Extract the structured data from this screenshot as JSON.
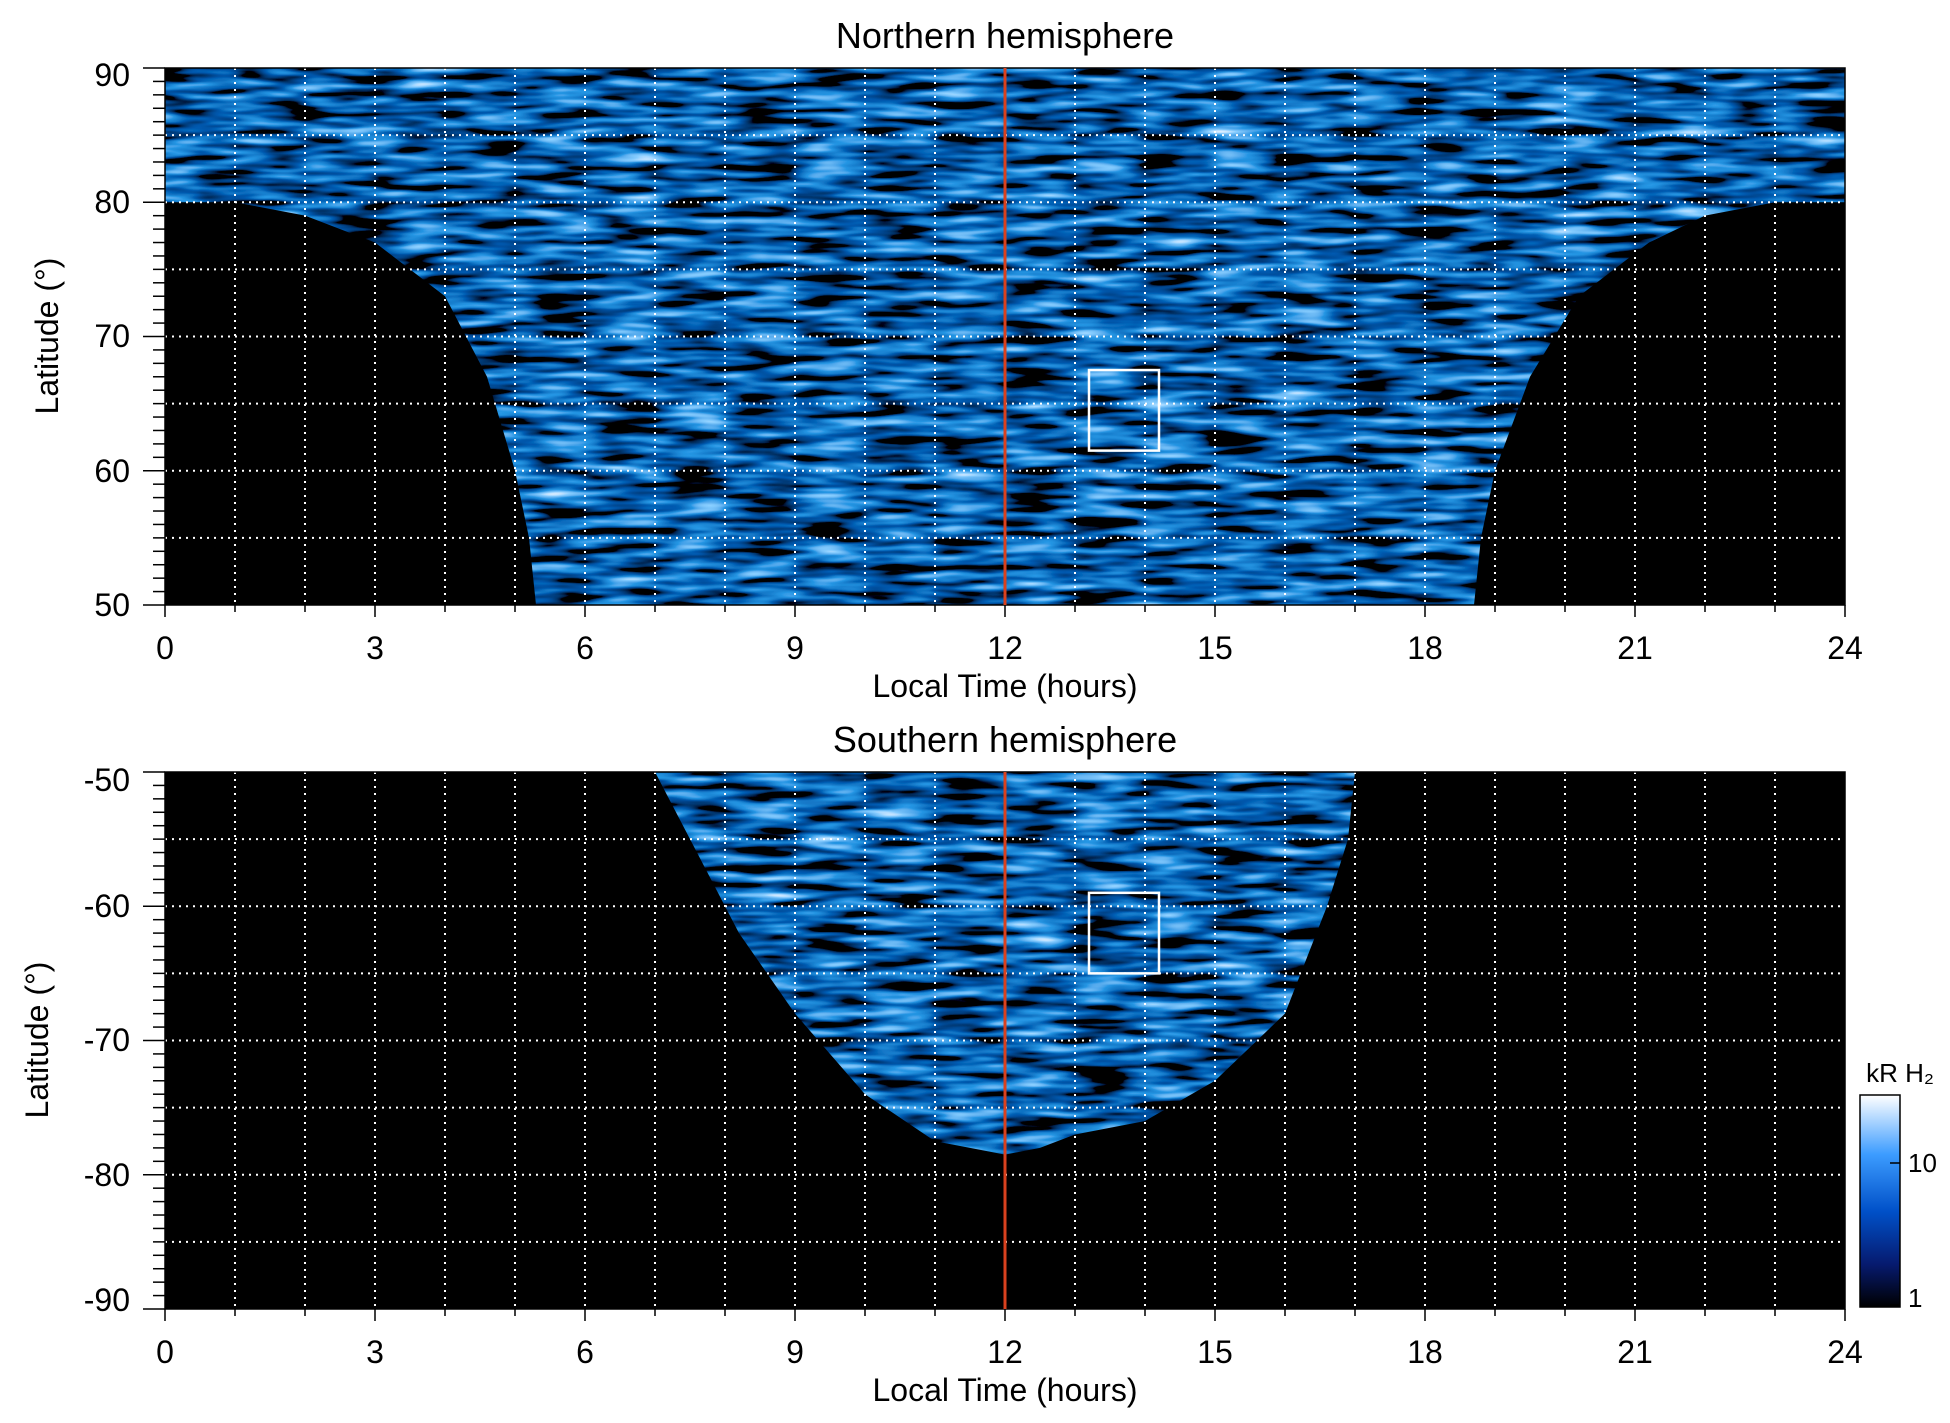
{
  "chart_data": [
    {
      "type": "heatmap",
      "title": "Northern hemisphere",
      "xlabel": "Local Time (hours)",
      "ylabel": "Latitude (°)",
      "xlim": [
        0,
        24
      ],
      "ylim": [
        50,
        90
      ],
      "xticks": [
        "0",
        "3",
        "6",
        "9",
        "12",
        "15",
        "18",
        "21",
        "24"
      ],
      "yticks": [
        "50",
        "60",
        "70",
        "80",
        "90"
      ],
      "grid": true,
      "noon_line_x": 12,
      "box": {
        "x0": 13.2,
        "x1": 14.2,
        "y0": 61.5,
        "y1": 67.5
      },
      "coverage_edge": [
        [
          0,
          80
        ],
        [
          1,
          80
        ],
        [
          2,
          79
        ],
        [
          3,
          77
        ],
        [
          4,
          73
        ],
        [
          4.6,
          67
        ],
        [
          5,
          60
        ],
        [
          5.2,
          55
        ],
        [
          5.3,
          50
        ],
        [
          18.7,
          50
        ],
        [
          18.8,
          55
        ],
        [
          19,
          60
        ],
        [
          19.5,
          67
        ],
        [
          20.2,
          73
        ],
        [
          21.2,
          77
        ],
        [
          22,
          79
        ],
        [
          23,
          80
        ],
        [
          24,
          80
        ]
      ]
    },
    {
      "type": "heatmap",
      "title": "Southern hemisphere",
      "xlabel": "Local Time (hours)",
      "ylabel": "Latitude (°)",
      "xlim": [
        0,
        24
      ],
      "ylim": [
        -90,
        -50
      ],
      "xticks": [
        "0",
        "3",
        "6",
        "9",
        "12",
        "15",
        "18",
        "21",
        "24"
      ],
      "yticks": [
        "-50",
        "-60",
        "-70",
        "-80",
        "-90"
      ],
      "grid": true,
      "noon_line_x": 12,
      "box": {
        "x0": 13.2,
        "x1": 14.2,
        "y0": -65,
        "y1": -59
      },
      "coverage_edge": [
        [
          7,
          -50
        ],
        [
          7.5,
          -55
        ],
        [
          8.2,
          -62
        ],
        [
          9,
          -68
        ],
        [
          10,
          -74
        ],
        [
          11,
          -77.5
        ],
        [
          11.5,
          -78
        ],
        [
          12,
          -78.5
        ],
        [
          12.5,
          -78
        ],
        [
          13,
          -77
        ],
        [
          14,
          -76
        ],
        [
          15,
          -73
        ],
        [
          16,
          -68
        ],
        [
          16.6,
          -60
        ],
        [
          16.9,
          -55
        ],
        [
          17,
          -50
        ]
      ]
    }
  ],
  "colorbar": {
    "label": "kR H₂",
    "ticks": [
      "10",
      "1"
    ],
    "scale": "log",
    "range": [
      1,
      30
    ],
    "colors": [
      "#000000",
      "#061a6e",
      "#0050c8",
      "#3c9cff",
      "#ffffff"
    ]
  },
  "colors": {
    "noon_line": "#d9411e",
    "grid": "#ffffff",
    "box": "#ffffff",
    "background": "#000000"
  }
}
